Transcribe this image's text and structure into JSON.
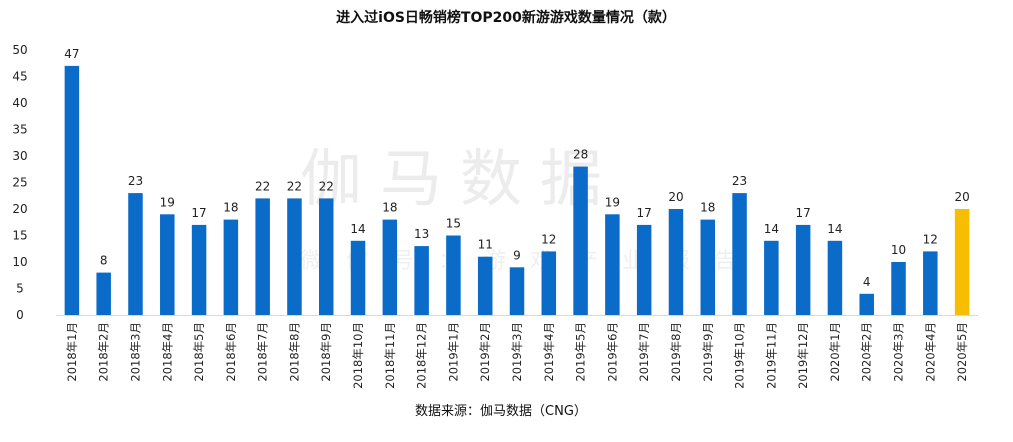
{
  "chart_data": {
    "type": "bar",
    "title": "进入过iOS日畅销榜TOP200新游游戏数量情况（款）",
    "categories": [
      "2018年1月",
      "2018年2月",
      "2018年3月",
      "2018年4月",
      "2018年5月",
      "2018年6月",
      "2018年7月",
      "2018年8月",
      "2018年9月",
      "2018年10月",
      "2018年11月",
      "2018年12月",
      "2019年1月",
      "2019年2月",
      "2019年3月",
      "2019年4月",
      "2019年5月",
      "2019年6月",
      "2019年7月",
      "2019年8月",
      "2019年9月",
      "2019年10月",
      "2019年11月",
      "2019年12月",
      "2020年1月",
      "2020年2月",
      "2020年3月",
      "2020年4月",
      "2020年5月"
    ],
    "values": [
      47,
      8,
      23,
      19,
      17,
      18,
      22,
      22,
      22,
      14,
      18,
      13,
      15,
      11,
      9,
      12,
      28,
      19,
      17,
      20,
      18,
      23,
      14,
      17,
      14,
      4,
      10,
      12,
      20
    ],
    "highlight_index": 28,
    "ylim": [
      0,
      50
    ],
    "yticks": [
      0,
      5,
      10,
      15,
      20,
      25,
      30,
      35,
      40,
      45,
      50
    ],
    "grid": false,
    "colors": {
      "bar": "#0a6bc9",
      "highlight": "#f7be00"
    },
    "source": "数据来源：伽马数据（CNG）",
    "watermark": {
      "main": "伽马数据",
      "sub": "微信号：游戏产业报告"
    }
  }
}
